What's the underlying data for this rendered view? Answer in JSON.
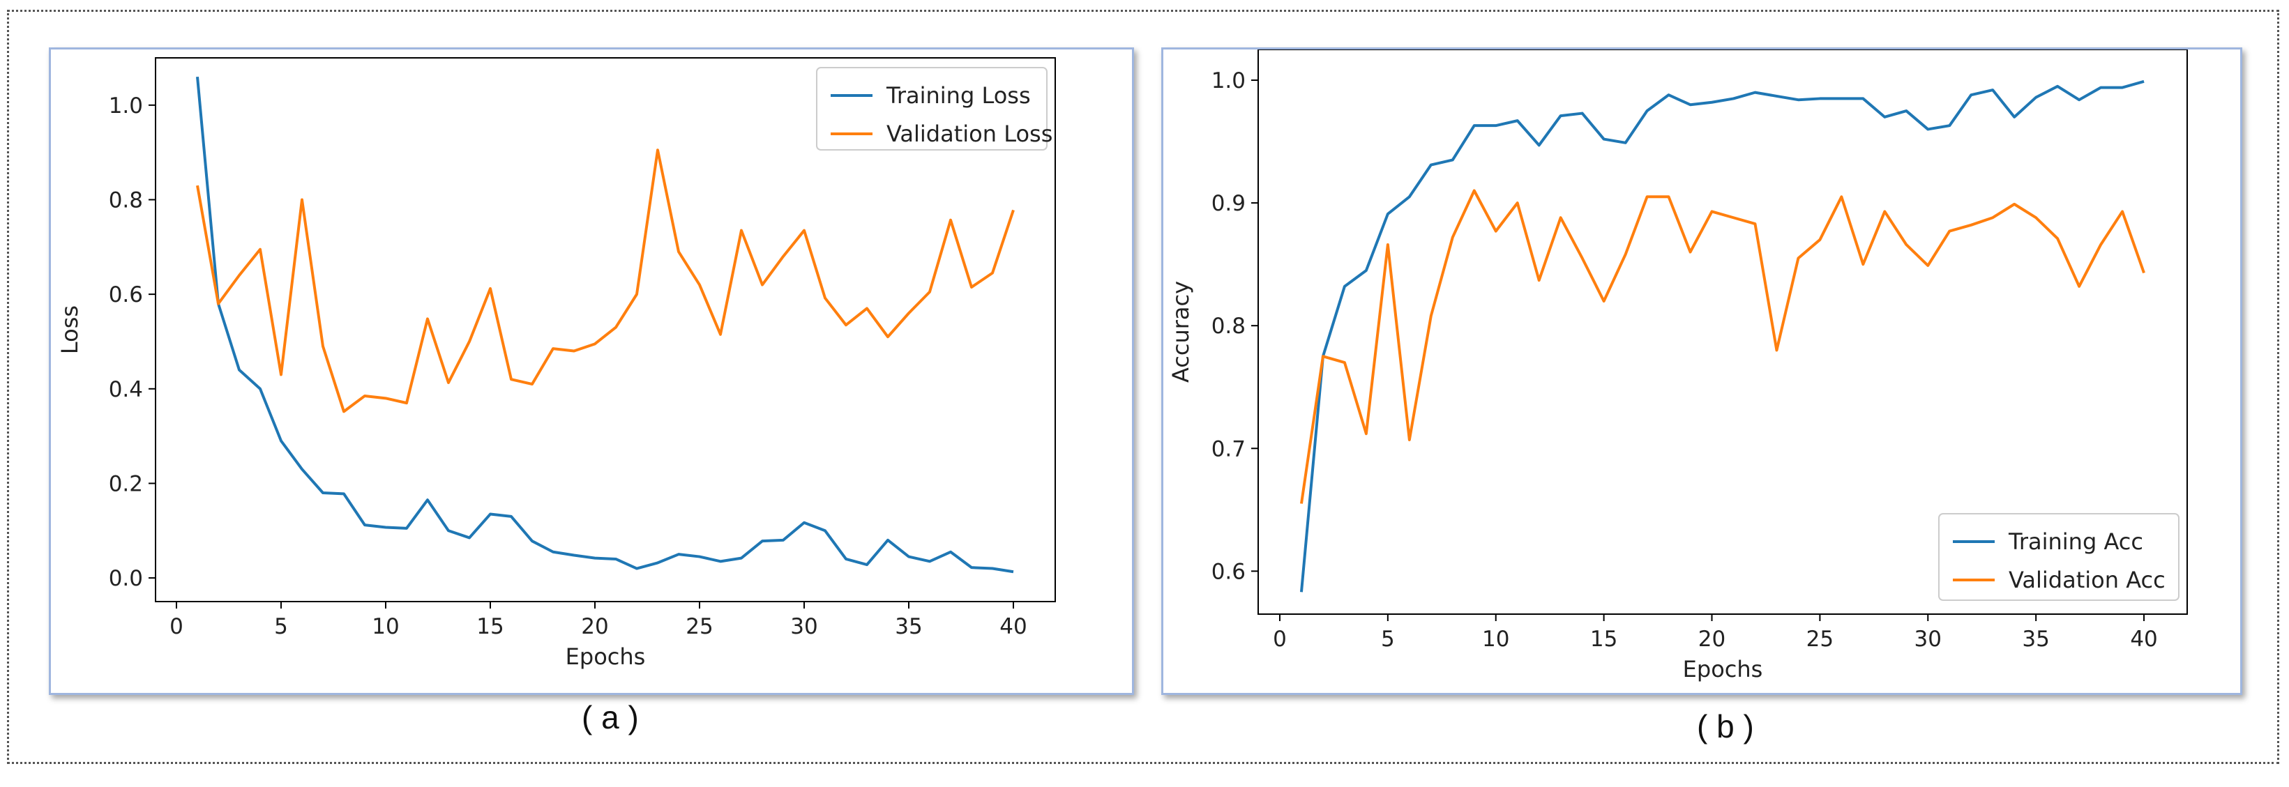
{
  "captions": {
    "a": "( a )",
    "b": "( b )"
  },
  "chart_data": [
    {
      "type": "line",
      "title": "",
      "xlabel": "Epochs",
      "ylabel": "Loss",
      "xlim": [
        -1,
        42
      ],
      "ylim": [
        -0.05,
        1.1
      ],
      "xticks": [
        0,
        5,
        10,
        15,
        20,
        25,
        30,
        35,
        40
      ],
      "yticks": [
        0.0,
        0.2,
        0.4,
        0.6,
        0.8,
        1.0
      ],
      "ytick_labels": [
        "0.0",
        "0.2",
        "0.4",
        "0.6",
        "0.8",
        "1.0"
      ],
      "legend_position": "top-right",
      "x": [
        1,
        2,
        3,
        4,
        5,
        6,
        7,
        8,
        9,
        10,
        11,
        12,
        13,
        14,
        15,
        16,
        17,
        18,
        19,
        20,
        21,
        22,
        23,
        24,
        25,
        26,
        27,
        28,
        29,
        30,
        31,
        32,
        33,
        34,
        35,
        36,
        37,
        38,
        39,
        40
      ],
      "series": [
        {
          "name": "Training Loss",
          "color": "#1f77b4",
          "values": [
            1.06,
            0.58,
            0.44,
            0.4,
            0.29,
            0.23,
            0.18,
            0.178,
            0.112,
            0.107,
            0.105,
            0.165,
            0.1,
            0.085,
            0.135,
            0.13,
            0.078,
            0.055,
            0.048,
            0.042,
            0.04,
            0.02,
            0.032,
            0.05,
            0.045,
            0.035,
            0.042,
            0.078,
            0.08,
            0.117,
            0.1,
            0.04,
            0.028,
            0.08,
            0.045,
            0.035,
            0.055,
            0.022,
            0.02,
            0.013
          ]
        },
        {
          "name": "Validation Loss",
          "color": "#ff7f0e",
          "values": [
            0.83,
            0.58,
            0.64,
            0.695,
            0.43,
            0.8,
            0.49,
            0.352,
            0.385,
            0.38,
            0.37,
            0.548,
            0.413,
            0.5,
            0.612,
            0.42,
            0.41,
            0.485,
            0.48,
            0.495,
            0.53,
            0.6,
            0.905,
            0.69,
            0.62,
            0.515,
            0.735,
            0.62,
            0.68,
            0.735,
            0.592,
            0.535,
            0.57,
            0.51,
            0.56,
            0.605,
            0.757,
            0.615,
            0.645,
            0.778
          ]
        }
      ]
    },
    {
      "type": "line",
      "title": "",
      "xlabel": "Epochs",
      "ylabel": "Accuracy",
      "xlim": [
        -1,
        42
      ],
      "ylim": [
        0.565,
        1.025
      ],
      "xticks": [
        0,
        5,
        10,
        15,
        20,
        25,
        30,
        35,
        40
      ],
      "yticks": [
        0.6,
        0.7,
        0.8,
        0.9,
        1.0
      ],
      "ytick_labels": [
        "0.6",
        "0.7",
        "0.8",
        "0.9",
        "1.0"
      ],
      "legend_position": "bottom-right",
      "x": [
        1,
        2,
        3,
        4,
        5,
        6,
        7,
        8,
        9,
        10,
        11,
        12,
        13,
        14,
        15,
        16,
        17,
        18,
        19,
        20,
        21,
        22,
        23,
        24,
        25,
        26,
        27,
        28,
        29,
        30,
        31,
        32,
        33,
        34,
        35,
        36,
        37,
        38,
        39,
        40
      ],
      "series": [
        {
          "name": "Training Acc",
          "color": "#1f77b4",
          "values": [
            0.583,
            0.775,
            0.832,
            0.845,
            0.891,
            0.905,
            0.931,
            0.935,
            0.963,
            0.963,
            0.967,
            0.947,
            0.971,
            0.973,
            0.952,
            0.949,
            0.975,
            0.988,
            0.98,
            0.982,
            0.985,
            0.99,
            0.987,
            0.984,
            0.985,
            0.985,
            0.985,
            0.97,
            0.975,
            0.96,
            0.963,
            0.988,
            0.992,
            0.97,
            0.986,
            0.995,
            0.984,
            0.994,
            0.994,
            0.999
          ]
        },
        {
          "name": "Validation Acc",
          "color": "#ff7f0e",
          "values": [
            0.655,
            0.775,
            0.77,
            0.712,
            0.866,
            0.707,
            0.808,
            0.872,
            0.91,
            0.877,
            0.9,
            0.837,
            0.888,
            0.855,
            0.82,
            0.858,
            0.905,
            0.905,
            0.86,
            0.893,
            0.888,
            0.883,
            0.78,
            0.855,
            0.87,
            0.905,
            0.85,
            0.893,
            0.866,
            0.849,
            0.877,
            0.882,
            0.888,
            0.899,
            0.888,
            0.871,
            0.832,
            0.866,
            0.893,
            0.843
          ]
        }
      ]
    }
  ]
}
